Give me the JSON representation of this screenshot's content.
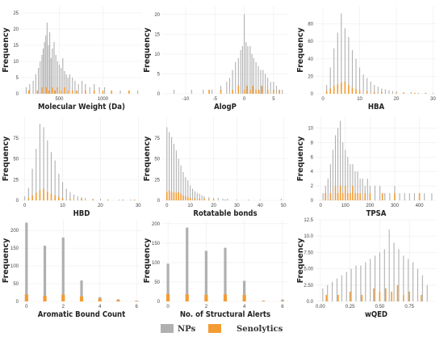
{
  "figure": {
    "legend": [
      {
        "label": "NPs",
        "color": "#b0b0b0"
      },
      {
        "label": "Senolytics",
        "color": "#f39c34"
      }
    ]
  },
  "chart_data": [
    {
      "type": "bar",
      "xlabel": "Molecular Weight (Da)",
      "ylabel": "Frequency",
      "xlim": [
        60,
        1450
      ],
      "ylim": [
        0,
        27
      ],
      "xticks": [
        500,
        1000
      ],
      "yticks": [
        0,
        5,
        10,
        15,
        20,
        25
      ],
      "grid": true,
      "series": [
        {
          "name": "NPs",
          "x": [
            120,
            160,
            200,
            230,
            260,
            280,
            300,
            315,
            330,
            345,
            360,
            375,
            390,
            405,
            420,
            440,
            460,
            480,
            500,
            520,
            540,
            560,
            580,
            600,
            620,
            650,
            680,
            720,
            760,
            800,
            850,
            900,
            960,
            1020,
            1100,
            1200,
            1300,
            1400
          ],
          "values": [
            2,
            3,
            4,
            6,
            8,
            10,
            12,
            14,
            16,
            18,
            22,
            15,
            19,
            11,
            14,
            16,
            12,
            10,
            9,
            8,
            11,
            7,
            6,
            5,
            6,
            5,
            4,
            3,
            4,
            3,
            2,
            3,
            2,
            2,
            1,
            1,
            1,
            1
          ]
        },
        {
          "name": "Senolytics",
          "x": [
            150,
            250,
            300,
            350,
            380,
            420,
            450,
            480,
            520,
            560,
            600,
            650,
            700,
            800,
            900,
            1000,
            1100,
            1300
          ],
          "values": [
            1,
            1,
            2,
            2,
            1,
            2,
            1,
            2,
            1,
            2,
            1,
            1,
            1,
            1,
            1,
            1,
            1,
            1
          ]
        }
      ]
    },
    {
      "type": "bar",
      "xlabel": "AlogP",
      "ylabel": "Frequency",
      "xlim": [
        -14,
        7.5
      ],
      "ylim": [
        0,
        22
      ],
      "xticks": [
        -10,
        -5,
        0,
        5
      ],
      "yticks": [
        0,
        5,
        10,
        15,
        20
      ],
      "grid": true,
      "series": [
        {
          "name": "NPs",
          "x": [
            -12,
            -9,
            -7,
            -5.5,
            -4,
            -3,
            -2.5,
            -2,
            -1.5,
            -1,
            -0.6,
            -0.3,
            0,
            0.3,
            0.6,
            1,
            1.3,
            1.6,
            2,
            2.4,
            2.8,
            3.2,
            3.6,
            4,
            4.5,
            5,
            5.5,
            6,
            6.5
          ],
          "values": [
            1,
            1,
            1,
            1,
            2,
            3,
            4,
            6,
            8,
            9,
            11,
            12,
            20,
            13,
            12,
            12,
            10,
            9,
            8,
            7,
            6,
            6,
            5,
            4,
            3,
            3,
            2,
            1,
            1
          ]
        },
        {
          "name": "Senolytics",
          "x": [
            -6,
            -4,
            -2,
            -1,
            0,
            0.5,
            1,
            1.5,
            2,
            2.5,
            3,
            4,
            5,
            6
          ],
          "values": [
            1,
            1,
            1,
            2,
            1,
            2,
            1,
            2,
            1,
            1,
            2,
            1,
            1,
            1
          ]
        }
      ]
    },
    {
      "type": "bar",
      "xlabel": "HBA",
      "ylabel": "Frequency",
      "xlim": [
        -2,
        31
      ],
      "ylim": [
        0,
        100
      ],
      "xticks": [
        0,
        10,
        20,
        30
      ],
      "yticks": [
        0,
        20,
        40,
        60,
        80
      ],
      "grid": true,
      "series": [
        {
          "name": "NPs",
          "x": [
            1,
            2,
            3,
            4,
            5,
            6,
            7,
            8,
            9,
            10,
            11,
            12,
            13,
            14,
            15,
            16,
            17,
            18,
            19,
            20,
            22,
            24,
            26,
            28,
            30
          ],
          "values": [
            10,
            30,
            52,
            70,
            92,
            75,
            65,
            50,
            40,
            30,
            22,
            18,
            14,
            10,
            8,
            6,
            5,
            4,
            3,
            3,
            2,
            2,
            1,
            1,
            1
          ]
        },
        {
          "name": "Senolytics",
          "x": [
            1,
            2,
            3,
            4,
            5,
            6,
            7,
            8,
            9,
            10,
            12,
            14,
            16,
            20,
            22,
            25,
            28
          ],
          "values": [
            3,
            6,
            9,
            11,
            13,
            14,
            10,
            7,
            5,
            4,
            3,
            2,
            2,
            1,
            1,
            1,
            1
          ]
        }
      ]
    },
    {
      "type": "bar",
      "xlabel": "HBD",
      "ylabel": "Frequency",
      "xlim": [
        -1,
        31
      ],
      "ylim": [
        0,
        100
      ],
      "xticks": [
        0,
        10,
        20,
        30
      ],
      "yticks": [
        0,
        25,
        50,
        75
      ],
      "grid": true,
      "series": [
        {
          "name": "NPs",
          "x": [
            0,
            1,
            2,
            3,
            4,
            5,
            6,
            7,
            8,
            9,
            10,
            11,
            12,
            13,
            14,
            15,
            16,
            18,
            20,
            22,
            25,
            28
          ],
          "values": [
            5,
            15,
            38,
            62,
            92,
            88,
            72,
            58,
            48,
            32,
            22,
            14,
            10,
            7,
            5,
            4,
            3,
            2,
            2,
            1,
            1,
            1
          ]
        },
        {
          "name": "Senolytics",
          "x": [
            1,
            2,
            3,
            4,
            5,
            6,
            7,
            8,
            9,
            10,
            12,
            15,
            18,
            22,
            26,
            29
          ],
          "values": [
            3,
            6,
            9,
            12,
            14,
            10,
            8,
            6,
            4,
            3,
            2,
            2,
            1,
            1,
            1,
            1
          ]
        }
      ]
    },
    {
      "type": "bar",
      "xlabel": "Rotatable bonds",
      "ylabel": "Frequency",
      "xlim": [
        -2,
        52
      ],
      "ylim": [
        0,
        100
      ],
      "xticks": [
        0,
        10,
        20,
        30,
        40,
        50
      ],
      "yticks": [
        0,
        25,
        50,
        75
      ],
      "grid": true,
      "series": [
        {
          "name": "NPs",
          "x": [
            0,
            1,
            2,
            3,
            4,
            5,
            6,
            7,
            8,
            9,
            10,
            11,
            12,
            13,
            14,
            15,
            16,
            18,
            20,
            22,
            24,
            26,
            30,
            35,
            40,
            49
          ],
          "values": [
            88,
            82,
            76,
            68,
            60,
            50,
            42,
            34,
            28,
            24,
            18,
            14,
            11,
            9,
            8,
            6,
            5,
            4,
            3,
            3,
            2,
            2,
            1,
            1,
            1,
            2
          ]
        },
        {
          "name": "Senolytics",
          "x": [
            0,
            1,
            2,
            3,
            4,
            5,
            6,
            7,
            8,
            9,
            10,
            12,
            14,
            16,
            18,
            20,
            25
          ],
          "values": [
            10,
            12,
            10,
            10,
            9,
            10,
            8,
            6,
            5,
            4,
            3,
            3,
            2,
            2,
            1,
            1,
            1
          ]
        }
      ]
    },
    {
      "type": "bar",
      "xlabel": "TPSA",
      "ylabel": "Frequency",
      "xlim": [
        -20,
        470
      ],
      "ylim": [
        0,
        11.5
      ],
      "xticks": [
        0,
        100,
        200,
        300,
        400
      ],
      "yticks": [
        0,
        2,
        4,
        6,
        8,
        10
      ],
      "grid": true,
      "series": [
        {
          "name": "NPs",
          "x": [
            10,
            20,
            30,
            40,
            50,
            60,
            70,
            80,
            90,
            100,
            110,
            120,
            130,
            140,
            150,
            160,
            170,
            180,
            190,
            200,
            220,
            240,
            260,
            280,
            300,
            320,
            340,
            360,
            380,
            420,
            450
          ],
          "values": [
            1,
            2,
            3,
            5,
            7,
            9,
            10,
            11,
            8,
            7,
            6,
            5,
            5,
            4,
            4,
            3,
            3,
            2,
            3,
            2,
            2,
            2,
            1,
            1,
            2,
            1,
            1,
            1,
            1,
            1,
            1
          ]
        },
        {
          "name": "Senolytics",
          "x": [
            20,
            40,
            60,
            70,
            80,
            90,
            100,
            110,
            120,
            130,
            140,
            150,
            160,
            180,
            200,
            250,
            300,
            400
          ],
          "values": [
            1,
            1,
            2,
            1,
            2,
            1,
            2,
            1,
            1,
            2,
            1,
            1,
            1,
            1,
            1,
            1,
            1,
            1
          ]
        }
      ]
    },
    {
      "type": "bar",
      "xlabel": "Aromatic Bound Count",
      "ylabel": "Frequency",
      "xlim": [
        -0.3,
        6.3
      ],
      "ylim": [
        0,
        230
      ],
      "xticks": [
        0,
        2,
        4,
        6
      ],
      "yticks": [
        0,
        50,
        100,
        150,
        200
      ],
      "grid": true,
      "series": [
        {
          "name": "NPs",
          "x": [
            0,
            1,
            2,
            3,
            4,
            5,
            6
          ],
          "values": [
            222,
            157,
            180,
            59,
            12,
            6,
            2
          ]
        },
        {
          "name": "Senolytics",
          "x": [
            0,
            1,
            2,
            3,
            4,
            5,
            6
          ],
          "values": [
            20,
            16,
            19,
            14,
            8,
            4,
            1
          ]
        }
      ]
    },
    {
      "type": "bar",
      "xlabel": "No. of Structural Alerts",
      "ylabel": "Frequency",
      "xlim": [
        -0.3,
        6.3
      ],
      "ylim": [
        0,
        210
      ],
      "xticks": [
        0,
        2,
        4,
        6
      ],
      "yticks": [
        0,
        50,
        100,
        150,
        200
      ],
      "grid": true,
      "series": [
        {
          "name": "NPs",
          "x": [
            0,
            1,
            2,
            3,
            4,
            5,
            6
          ],
          "values": [
            97,
            190,
            130,
            138,
            53,
            2,
            5
          ]
        },
        {
          "name": "Senolytics",
          "x": [
            0,
            1,
            2,
            3,
            4,
            5,
            6
          ],
          "values": [
            19,
            18,
            17,
            18,
            17,
            1,
            1
          ]
        }
      ]
    },
    {
      "type": "bar",
      "xlabel": "wQED",
      "ylabel": "Frequency",
      "xlim": [
        -0.04,
        0.98
      ],
      "ylim": [
        0,
        12.5
      ],
      "xticks": [
        0.0,
        0.25,
        0.5,
        0.75
      ],
      "xtick_labels": [
        "0.00",
        "0.25",
        "0.50",
        "0.75"
      ],
      "yticks": [
        0.0,
        2.5,
        5.0,
        7.5,
        10.0,
        12.5
      ],
      "ytick_labels": [
        "0.0",
        "2.50",
        "5.00",
        "7.50",
        "10.0",
        "12.5"
      ],
      "grid": true,
      "series": [
        {
          "name": "NPs",
          "x": [
            0.02,
            0.06,
            0.1,
            0.14,
            0.18,
            0.22,
            0.26,
            0.3,
            0.34,
            0.38,
            0.42,
            0.46,
            0.5,
            0.54,
            0.58,
            0.62,
            0.66,
            0.7,
            0.74,
            0.78,
            0.82,
            0.86,
            0.9
          ],
          "values": [
            2,
            2.5,
            3,
            3.5,
            4,
            4.5,
            5,
            5.5,
            5.5,
            6,
            6.5,
            7,
            7.5,
            8,
            11,
            9,
            8,
            7,
            6.5,
            6,
            5,
            4,
            2.5
          ]
        },
        {
          "name": "Senolytics",
          "x": [
            0.05,
            0.15,
            0.25,
            0.35,
            0.45,
            0.5,
            0.55,
            0.6,
            0.65,
            0.7,
            0.75,
            0.85
          ],
          "values": [
            1,
            1,
            1.5,
            1,
            2,
            1.5,
            2,
            1.5,
            2.5,
            1,
            1.5,
            1
          ]
        }
      ]
    }
  ]
}
